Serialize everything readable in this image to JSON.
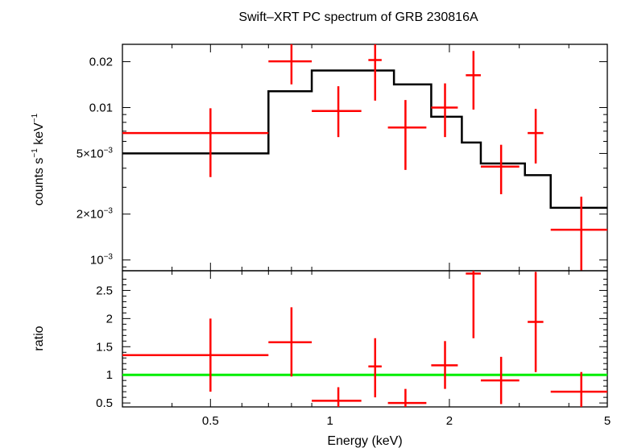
{
  "chart_data": {
    "title": "Swift–XRT PC spectrum of GRB 230816A",
    "xlabel": "Energy (keV)",
    "x_scale": "log",
    "xlim": [
      0.3,
      5
    ],
    "x_ticks": [
      {
        "v": 0.5,
        "label": "0.5"
      },
      {
        "v": 1,
        "label": "1"
      },
      {
        "v": 2,
        "label": "2"
      },
      {
        "v": 5,
        "label": "5"
      }
    ],
    "panels": [
      {
        "type": "scatter",
        "ylabel_main": "counts s",
        "ylabel_sup1": "−1",
        "ylabel_mid": " keV",
        "ylabel_sup2": "−1",
        "y_scale": "log",
        "ylim": [
          0.00085,
          0.026
        ],
        "y_ticks": [
          {
            "v": 0.02,
            "label": "0.02"
          },
          {
            "v": 0.01,
            "label": "0.01"
          },
          {
            "v": 0.005,
            "label": "5×10",
            "sup": "−3"
          },
          {
            "v": 0.002,
            "label": "2×10",
            "sup": "−3"
          },
          {
            "v": 0.001,
            "label": "10",
            "sup": "−3"
          }
        ],
        "series": [
          {
            "type": "errorbar",
            "color": "#ff0000",
            "points": [
              {
                "x": 0.5,
                "xlo": 0.3,
                "xhi": 0.7,
                "y": 0.0068,
                "ylo": 0.0035,
                "yhi": 0.0099
              },
              {
                "x": 0.8,
                "xlo": 0.7,
                "xhi": 0.9,
                "y": 0.0201,
                "ylo": 0.0142,
                "yhi": 0.0265
              },
              {
                "x": 1.05,
                "xlo": 0.9,
                "xhi": 1.2,
                "y": 0.0095,
                "ylo": 0.0064,
                "yhi": 0.0138
              },
              {
                "x": 1.3,
                "xlo": 1.25,
                "xhi": 1.35,
                "y": 0.0205,
                "ylo": 0.0111,
                "yhi": 0.0295
              },
              {
                "x": 1.55,
                "xlo": 1.4,
                "xhi": 1.75,
                "y": 0.0074,
                "ylo": 0.0039,
                "yhi": 0.0112
              },
              {
                "x": 1.95,
                "xlo": 1.8,
                "xhi": 2.1,
                "y": 0.01,
                "ylo": 0.0064,
                "yhi": 0.0144
              },
              {
                "x": 2.3,
                "xlo": 2.2,
                "xhi": 2.4,
                "y": 0.0163,
                "ylo": 0.0097,
                "yhi": 0.0235
              },
              {
                "x": 2.7,
                "xlo": 2.4,
                "xhi": 3.0,
                "y": 0.0041,
                "ylo": 0.0027,
                "yhi": 0.0057
              },
              {
                "x": 3.3,
                "xlo": 3.15,
                "xhi": 3.45,
                "y": 0.0068,
                "ylo": 0.0043,
                "yhi": 0.0098
              },
              {
                "x": 4.3,
                "xlo": 3.6,
                "xhi": 5.0,
                "y": 0.00158,
                "ylo": 0.00085,
                "yhi": 0.0026
              }
            ]
          },
          {
            "type": "step",
            "color": "#000000",
            "edges": [
              0.3,
              0.7,
              0.9,
              1.2,
              1.45,
              1.8,
              2.15,
              2.4,
              3.1,
              3.6,
              5.0
            ],
            "values": [
              0.005,
              0.0128,
              0.0175,
              0.0175,
              0.0142,
              0.0087,
              0.0059,
              0.0043,
              0.0036,
              0.0022
            ]
          }
        ]
      },
      {
        "type": "scatter",
        "ylabel": "ratio",
        "y_scale": "linear",
        "ylim": [
          0.43,
          2.85
        ],
        "y_ticks": [
          {
            "v": 0.5,
            "label": "0.5"
          },
          {
            "v": 1,
            "label": "1"
          },
          {
            "v": 1.5,
            "label": "1.5"
          },
          {
            "v": 2,
            "label": "2"
          },
          {
            "v": 2.5,
            "label": "2.5"
          }
        ],
        "reference_line": {
          "y": 1,
          "color": "#00ee00"
        },
        "series": [
          {
            "type": "errorbar",
            "color": "#ff0000",
            "points": [
              {
                "x": 0.5,
                "xlo": 0.3,
                "xhi": 0.7,
                "y": 1.35,
                "ylo": 0.7,
                "yhi": 2.0
              },
              {
                "x": 0.8,
                "xlo": 0.7,
                "xhi": 0.9,
                "y": 1.58,
                "ylo": 0.97,
                "yhi": 2.2
              },
              {
                "x": 1.05,
                "xlo": 0.9,
                "xhi": 1.2,
                "y": 0.54,
                "ylo": 0.38,
                "yhi": 0.78
              },
              {
                "x": 1.3,
                "xlo": 1.25,
                "xhi": 1.35,
                "y": 1.15,
                "ylo": 0.6,
                "yhi": 1.65
              },
              {
                "x": 1.55,
                "xlo": 1.4,
                "xhi": 1.75,
                "y": 0.5,
                "ylo": 0.33,
                "yhi": 0.75
              },
              {
                "x": 1.95,
                "xlo": 1.8,
                "xhi": 2.1,
                "y": 1.17,
                "ylo": 0.75,
                "yhi": 1.6
              },
              {
                "x": 2.3,
                "xlo": 2.2,
                "xhi": 2.4,
                "y": 2.8,
                "ylo": 1.65,
                "yhi": 3.0
              },
              {
                "x": 2.7,
                "xlo": 2.4,
                "xhi": 3.0,
                "y": 0.9,
                "ylo": 0.48,
                "yhi": 1.32
              },
              {
                "x": 3.3,
                "xlo": 3.15,
                "xhi": 3.45,
                "y": 1.94,
                "ylo": 1.05,
                "yhi": 2.83
              },
              {
                "x": 4.3,
                "xlo": 3.6,
                "xhi": 5.0,
                "y": 0.7,
                "ylo": 0.4,
                "yhi": 1.05
              }
            ]
          }
        ]
      }
    ]
  }
}
